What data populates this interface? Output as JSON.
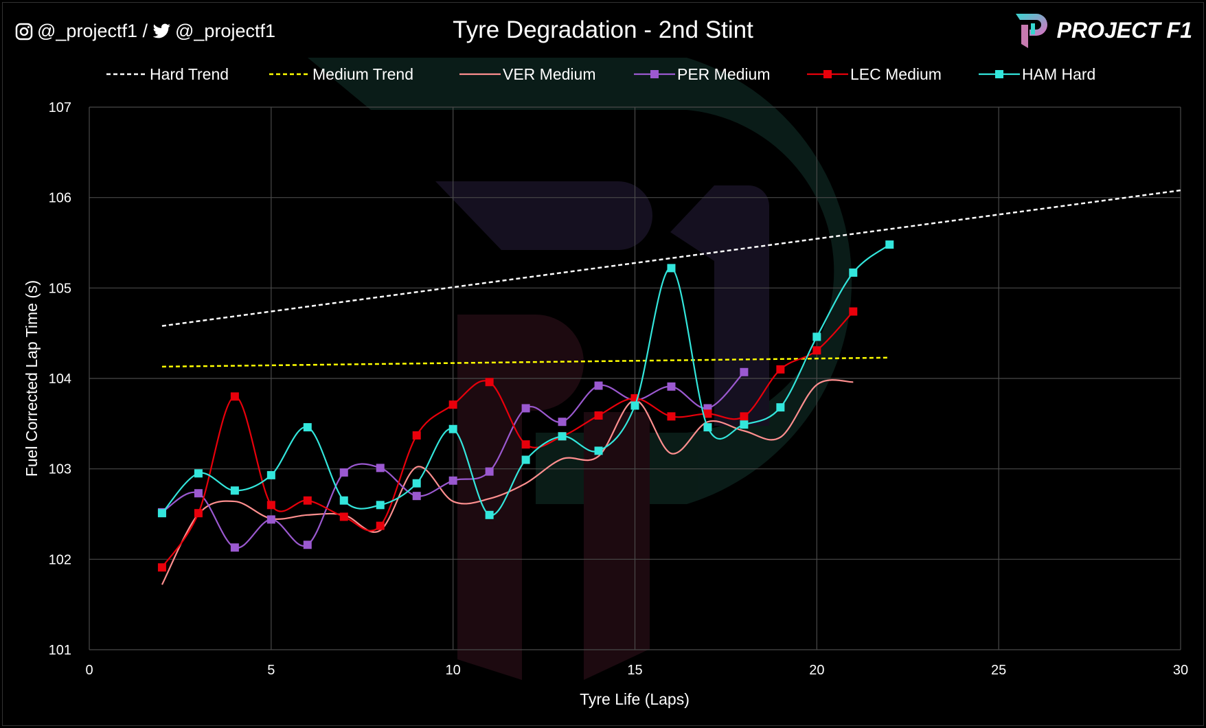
{
  "header": {
    "social": "@_projectf1 / ",
    "social2": "@_projectf1",
    "logo_text": "PROJECT F1"
  },
  "chart_data": {
    "type": "line",
    "title": "Tyre Degradation - 2nd Stint",
    "xlabel": "Tyre Life (Laps)",
    "ylabel": "Fuel Corrected Lap Time (s)",
    "xlim": [
      0,
      30
    ],
    "ylim": [
      101,
      107
    ],
    "xticks": [
      0,
      5,
      10,
      15,
      20,
      25,
      30
    ],
    "yticks": [
      101,
      102,
      103,
      104,
      105,
      106,
      107
    ],
    "grid": true,
    "legend_position": "top",
    "series": [
      {
        "name": "Hard Trend",
        "color": "#ffffff",
        "style": "dashed",
        "marker": false,
        "x": [
          2,
          30
        ],
        "y": [
          104.58,
          106.08
        ]
      },
      {
        "name": "Medium Trend",
        "color": "#ffff00",
        "style": "dashed",
        "marker": false,
        "x": [
          2,
          22
        ],
        "y": [
          104.13,
          104.23
        ]
      },
      {
        "name": "VER Medium",
        "color": "#ff8f8f",
        "style": "solid",
        "marker": false,
        "x": [
          2,
          3,
          4,
          5,
          6,
          7,
          8,
          9,
          10,
          11,
          12,
          13,
          14,
          15,
          16,
          17,
          18,
          19,
          20,
          21
        ],
        "y": [
          101.72,
          102.5,
          102.64,
          102.45,
          102.49,
          102.49,
          102.32,
          103.02,
          102.64,
          102.67,
          102.84,
          103.11,
          103.14,
          103.76,
          103.17,
          103.52,
          103.42,
          103.35,
          103.93,
          103.96
        ]
      },
      {
        "name": "PER Medium",
        "color": "#9b59d0",
        "style": "solid",
        "marker": true,
        "x": [
          2,
          3,
          4,
          5,
          6,
          7,
          8,
          9,
          10,
          11,
          12,
          13,
          14,
          15,
          16,
          17,
          18
        ],
        "y": [
          102.52,
          102.73,
          102.13,
          102.44,
          102.16,
          102.96,
          103.01,
          102.7,
          102.87,
          102.97,
          103.67,
          103.52,
          103.92,
          103.76,
          103.91,
          103.67,
          104.07
        ]
      },
      {
        "name": "LEC Medium",
        "color": "#e8000b",
        "style": "solid",
        "marker": true,
        "x": [
          2,
          3,
          4,
          5,
          6,
          7,
          8,
          9,
          10,
          11,
          12,
          13,
          14,
          15,
          16,
          17,
          18,
          19,
          20,
          21
        ],
        "y": [
          101.91,
          102.51,
          103.8,
          102.6,
          102.65,
          102.47,
          102.37,
          103.37,
          103.71,
          103.96,
          103.27,
          103.36,
          103.59,
          103.78,
          103.58,
          103.61,
          103.58,
          104.1,
          104.31,
          104.74
        ]
      },
      {
        "name": "HAM Hard",
        "color": "#33e6dc",
        "style": "solid",
        "marker": true,
        "x": [
          2,
          3,
          4,
          5,
          6,
          7,
          8,
          9,
          10,
          11,
          12,
          13,
          14,
          15,
          16,
          17,
          18,
          19,
          20,
          21,
          22
        ],
        "y": [
          102.51,
          102.95,
          102.76,
          102.93,
          103.46,
          102.65,
          102.6,
          102.84,
          103.44,
          102.49,
          103.1,
          103.36,
          103.2,
          103.7,
          105.22,
          103.46,
          103.49,
          103.68,
          104.46,
          105.17,
          105.48
        ]
      }
    ]
  }
}
